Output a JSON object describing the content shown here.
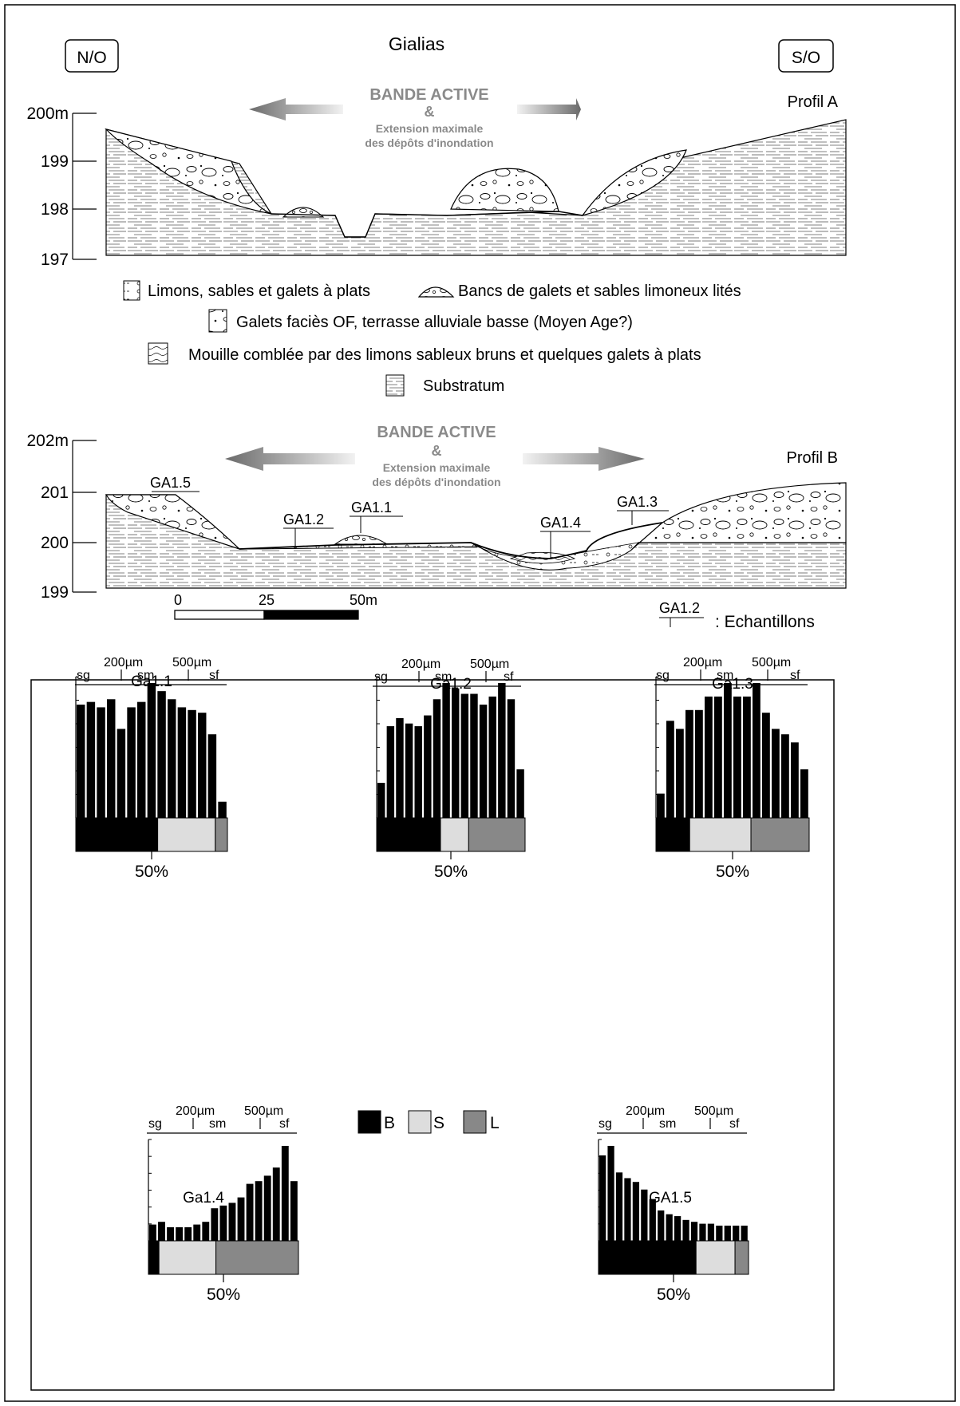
{
  "header": {
    "title": "Gialias",
    "left_orientation": "N/O",
    "right_orientation": "S/O"
  },
  "banner": {
    "line1": "BANDE ACTIVE",
    "line2": "&",
    "line3": "Extension maximale",
    "line4": "des dépôts d'inondation"
  },
  "profile_a": {
    "label": "Profil A",
    "y_ticks": [
      "200m",
      "199",
      "198",
      "197"
    ]
  },
  "profile_b": {
    "label": "Profil B",
    "y_ticks": [
      "202m",
      "201",
      "200",
      "199"
    ],
    "samples": [
      "GA1.5",
      "GA1.2",
      "GA1.1",
      "GA1.4",
      "GA1.3"
    ]
  },
  "legend": {
    "items": [
      "Limons, sables et galets à plats",
      "Bancs de galets et sables limoneux lités",
      "Galets faciès OF, terrasse alluviale basse (Moyen Age?)",
      "Mouille comblée par des limons sableux bruns et quelques galets à plats",
      "Substratum"
    ]
  },
  "scale_bar": {
    "ticks": [
      "0",
      "25",
      "50m"
    ]
  },
  "sample_key": {
    "label": "GA1.2",
    "text": ": Echantillons"
  },
  "grain_scale": {
    "left_size": "200µm",
    "right_size": "500µm",
    "classes": [
      "sg",
      "sm",
      "sf"
    ]
  },
  "fifty_label": "50%",
  "bar_legend": {
    "items": [
      {
        "code": "B",
        "color": "#000000"
      },
      {
        "code": "S",
        "color": "#dddddd"
      },
      {
        "code": "L",
        "color": "#888888"
      }
    ]
  },
  "chart_data": [
    {
      "type": "bar",
      "title": "Ga1.1",
      "values": [
        42,
        43,
        41,
        44,
        33,
        41,
        43,
        50,
        47,
        44,
        41,
        40,
        39,
        31,
        6
      ],
      "composition": {
        "B": 54,
        "S": 38,
        "L": 8
      }
    },
    {
      "type": "bar",
      "title": "Ga1.2",
      "values": [
        13,
        34,
        37,
        35,
        34,
        38,
        44,
        50,
        48,
        46,
        46,
        42,
        45,
        50,
        44,
        18
      ],
      "composition": {
        "B": 43,
        "S": 19,
        "L": 38
      }
    },
    {
      "type": "bar",
      "title": "Ga1.3",
      "values": [
        9,
        36,
        33,
        40,
        40,
        45,
        45,
        50,
        45,
        45,
        50,
        39,
        33,
        31,
        28,
        18
      ],
      "composition": {
        "B": 22,
        "S": 40,
        "L": 38
      }
    },
    {
      "type": "bar",
      "title": "Ga1.4",
      "values": [
        6,
        7,
        5,
        5,
        5,
        6,
        7,
        12,
        13,
        14,
        16,
        21,
        22,
        24,
        27,
        35,
        22
      ],
      "composition": {
        "B": 7,
        "S": 38,
        "L": 55
      }
    },
    {
      "type": "bar",
      "title": "GA1.5",
      "values": [
        45,
        50,
        36,
        33,
        31,
        27,
        22,
        16,
        14,
        13,
        11,
        10,
        9,
        9,
        8,
        8,
        8,
        8
      ],
      "composition": {
        "B": 65,
        "S": 26,
        "L": 9
      }
    }
  ]
}
